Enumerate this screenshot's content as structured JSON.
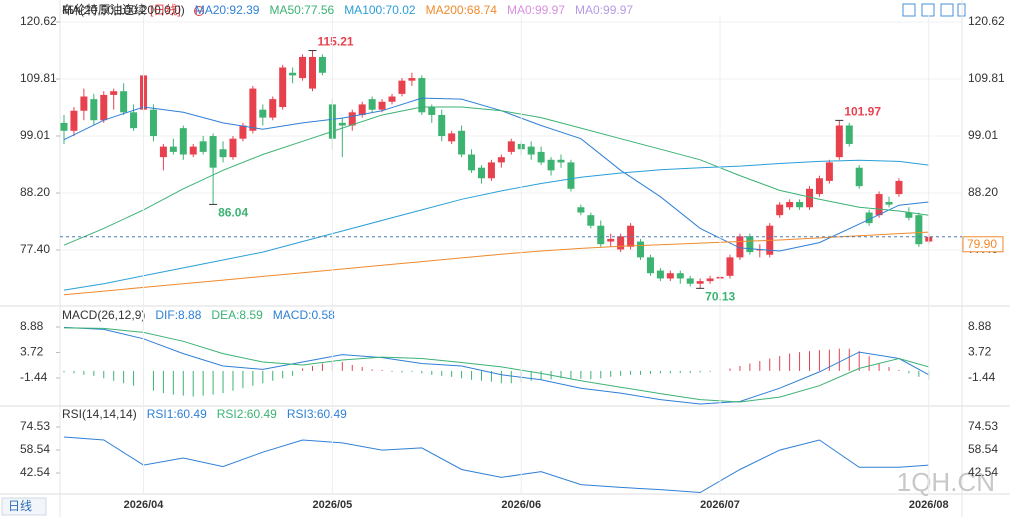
{
  "header": {
    "title": "布伦特原油连续",
    "period": "[日线]",
    "tag": "日线",
    "watermark": "1QH.CN"
  },
  "chart_data": [
    {
      "type": "candlestick",
      "indicator": "MA(20,50,100,200,0,0)",
      "up_color": "#e8414e",
      "down_color": "#3cb371",
      "ylim": [
        66.97,
        121.95
      ],
      "yticks": [
        120.62,
        109.81,
        99.01,
        {
          "value": 88.2,
          "label": "88.20"
        },
        {
          "value": 77.4,
          "label": "77.40"
        }
      ],
      "grid": true,
      "last": {
        "value": 79.9,
        "label": "79.90",
        "color": "#f08a2c"
      },
      "candles": [
        [
          101.5,
          103,
          97.5,
          100
        ],
        [
          100,
          104.5,
          99,
          103.8
        ],
        [
          103.8,
          108,
          102,
          106.5
        ],
        [
          106,
          107,
          101,
          102
        ],
        [
          102,
          107.5,
          101.5,
          106.8
        ],
        [
          106.8,
          108,
          104,
          107.5
        ],
        [
          107.5,
          109,
          103,
          103.5
        ],
        [
          103.5,
          105,
          100,
          100.5
        ],
        [
          104,
          111.5,
          103,
          110.5
        ],
        [
          104,
          105,
          98,
          99
        ],
        [
          95,
          97.5,
          92.5,
          97
        ],
        [
          97,
          98.5,
          95.5,
          96
        ],
        [
          100.5,
          101,
          94.5,
          95.5
        ],
        [
          95.5,
          97.5,
          95,
          97
        ],
        [
          98,
          99,
          95.5,
          96
        ],
        [
          99,
          99.5,
          86.04,
          93
        ],
        [
          96.5,
          98,
          94,
          95
        ],
        [
          95,
          99,
          94.5,
          98.5
        ],
        [
          98.5,
          101.5,
          98,
          101
        ],
        [
          100,
          108.5,
          99.5,
          108
        ],
        [
          104,
          105,
          101,
          102.5
        ],
        [
          102.5,
          106.5,
          102,
          106
        ],
        [
          104.5,
          112.5,
          104,
          112
        ],
        [
          111,
          112,
          109,
          110.5
        ],
        [
          110,
          114.5,
          109.5,
          114
        ],
        [
          108,
          115.21,
          107.5,
          114
        ],
        [
          114,
          114.5,
          110.5,
          111
        ],
        [
          105,
          106,
          96.5,
          98.5
        ],
        [
          101.5,
          102.5,
          95,
          101
        ],
        [
          101,
          104,
          100,
          103.5
        ],
        [
          103,
          105.5,
          102.5,
          105
        ],
        [
          106,
          106.5,
          103.5,
          104
        ],
        [
          104,
          106,
          103.5,
          105.5
        ],
        [
          105.5,
          107,
          105,
          106.5
        ],
        [
          107,
          110,
          106.5,
          109.5
        ],
        [
          109.5,
          111,
          108.5,
          110
        ],
        [
          110,
          110.5,
          103,
          103.5
        ],
        [
          104.5,
          105,
          101.5,
          103
        ],
        [
          103,
          104,
          98,
          99
        ],
        [
          98,
          100,
          97.5,
          99.5
        ],
        [
          100,
          101,
          95,
          95.5
        ],
        [
          95.5,
          96.5,
          92,
          92.5
        ],
        [
          93,
          93.5,
          90,
          91
        ],
        [
          91,
          94.5,
          90.5,
          94
        ],
        [
          94,
          95.5,
          93,
          95
        ],
        [
          96,
          98.5,
          95.5,
          98
        ],
        [
          97.5,
          98,
          95.5,
          96.5
        ],
        [
          97,
          98,
          94.5,
          95.5
        ],
        [
          96,
          97,
          93.5,
          94
        ],
        [
          94.5,
          95,
          91.5,
          92.5
        ],
        [
          94.5,
          95.5,
          93,
          94
        ],
        [
          94,
          94.5,
          88.5,
          89
        ],
        [
          85.5,
          86,
          84,
          84.5
        ],
        [
          84,
          84.5,
          81.5,
          82
        ],
        [
          82,
          83,
          78,
          78.5
        ],
        [
          79,
          80.5,
          78,
          79.5
        ],
        [
          77.5,
          80.5,
          77,
          80
        ],
        [
          78,
          82.5,
          77.5,
          82
        ],
        [
          79,
          79.5,
          75.5,
          76
        ],
        [
          76,
          76.5,
          72.5,
          73
        ],
        [
          73.5,
          74,
          71.5,
          72
        ],
        [
          72,
          73.5,
          71.5,
          73
        ],
        [
          73,
          73.5,
          71,
          72
        ],
        [
          72,
          72.5,
          70.5,
          71
        ],
        [
          71,
          72,
          70.13,
          71.5
        ],
        [
          71.5,
          72.5,
          71,
          72
        ],
        [
          72,
          72.5,
          71.5,
          72.3
        ],
        [
          72.5,
          76.5,
          72,
          76
        ],
        [
          76,
          80.5,
          75.5,
          80
        ],
        [
          80,
          80.5,
          76.5,
          77
        ],
        [
          77.5,
          78.5,
          76,
          77.5
        ],
        [
          76.5,
          82.5,
          76,
          82
        ],
        [
          84,
          86.5,
          83.5,
          86
        ],
        [
          85.5,
          87,
          85,
          86.5
        ],
        [
          86.5,
          87,
          85,
          85.5
        ],
        [
          85.5,
          89.5,
          85,
          89
        ],
        [
          88,
          91.5,
          87.5,
          91
        ],
        [
          90.5,
          94.5,
          90,
          94
        ],
        [
          95,
          101.97,
          94.5,
          101
        ],
        [
          101,
          101.5,
          97,
          97.5
        ],
        [
          93,
          93.5,
          89,
          89.5
        ],
        [
          84.5,
          85,
          82,
          82.5
        ],
        [
          84,
          88.5,
          83.5,
          88
        ],
        [
          86.5,
          87.5,
          85.5,
          86
        ],
        [
          88,
          91,
          87.5,
          90.5
        ],
        [
          84.5,
          85.5,
          83,
          83.5
        ],
        [
          84,
          84.5,
          78,
          78.5
        ],
        [
          79,
          80.5,
          78.5,
          79.9
        ]
      ],
      "annotations": [
        {
          "index": 25,
          "value": 115.21
        },
        {
          "index": 15,
          "value": 86.04
        },
        {
          "index": 78,
          "value": 101.97
        },
        {
          "index": 64,
          "value": 70.13
        }
      ],
      "series": [
        {
          "name": "MA20:92.39",
          "color": "#2f7fd6",
          "x": [
            0,
            4,
            8,
            12,
            16,
            20,
            24,
            28,
            32,
            36,
            40,
            44,
            48,
            52,
            56,
            60,
            64,
            68,
            72,
            76,
            80,
            84,
            87
          ],
          "values": [
            98.3,
            102,
            104.5,
            103.5,
            101.5,
            100.3,
            101.5,
            102.4,
            103.8,
            106.2,
            106,
            103.8,
            101,
            98.5,
            92.5,
            87.5,
            81.5,
            77.8,
            77.2,
            78.8,
            82.3,
            85.9,
            86.5
          ]
        },
        {
          "name": "MA50:77.56",
          "color": "#3bb273",
          "x": [
            0,
            4,
            8,
            12,
            16,
            20,
            24,
            28,
            32,
            36,
            40,
            44,
            48,
            52,
            56,
            60,
            64,
            68,
            72,
            76,
            80,
            84,
            87
          ],
          "values": [
            78.3,
            81.5,
            85,
            89,
            92.5,
            95.5,
            98,
            100.5,
            103,
            104.5,
            104.5,
            103.8,
            102.5,
            100.5,
            98.5,
            96.5,
            94.5,
            91.5,
            88.7,
            87,
            85.5,
            84.8,
            84
          ]
        },
        {
          "name": "MA100:70.02",
          "color": "#2a9fd8",
          "x": [
            0,
            4,
            8,
            12,
            16,
            20,
            24,
            28,
            32,
            36,
            40,
            44,
            48,
            52,
            56,
            60,
            64,
            68,
            72,
            76,
            80,
            84,
            87
          ],
          "values": [
            69.8,
            71,
            72.5,
            74,
            75.5,
            77,
            79,
            81,
            83,
            85,
            87,
            88.6,
            90,
            91.2,
            92,
            92.6,
            93,
            93.3,
            93.8,
            94.2,
            94.4,
            94.2,
            93.5
          ]
        },
        {
          "name": "MA200:68.74",
          "color": "#f08a2c",
          "x": [
            0,
            4,
            8,
            12,
            16,
            20,
            24,
            28,
            32,
            36,
            40,
            44,
            48,
            52,
            56,
            60,
            64,
            68,
            72,
            76,
            80,
            84,
            87
          ],
          "values": [
            68.9,
            69.6,
            70.3,
            71,
            71.7,
            72.4,
            73.1,
            73.8,
            74.5,
            75.2,
            75.9,
            76.6,
            77.2,
            77.7,
            78.1,
            78.4,
            78.7,
            79,
            79.3,
            79.7,
            80.1,
            80.5,
            80.8
          ]
        }
      ],
      "extra_legend": [
        {
          "label": "MA0:99.97",
          "color": "#d98ee0"
        },
        {
          "label": "MA0:99.97",
          "color": "#b49ae6"
        }
      ]
    },
    {
      "type": "macd",
      "indicator": "MACD(26,12,9)",
      "ylim": [
        -7.51,
        12.73
      ],
      "yticks": [
        8.88,
        3.72,
        -1.44
      ],
      "histogram": {
        "name": "MACD:0.58",
        "color": "#2f7fd6",
        "up_color": "#e8414e",
        "down_color": "#3cb371",
        "values": [
          -0.3,
          -0.5,
          -0.8,
          -1.0,
          -1.5,
          -2.0,
          -2.5,
          -3,
          -3.5,
          -4,
          -4.5,
          -4.8,
          -5,
          -5.2,
          -5,
          -4.8,
          -4.5,
          -4,
          -3.5,
          -3,
          -2.5,
          -2,
          -1.5,
          -1,
          0.5,
          1,
          1.5,
          2,
          1.8,
          1.2,
          0.8,
          0.3,
          0.2,
          -0.2,
          -0.3,
          -0.2,
          -0.5,
          -0.8,
          -1,
          -1.2,
          -1.5,
          -1.8,
          -2,
          -2.2,
          -2.5,
          -2.5,
          -2.3,
          -2,
          -1.8,
          -1.7,
          -1.5,
          -1.5,
          -1.6,
          -1.7,
          -1.5,
          -1.2,
          -1,
          -0.8,
          -0.8,
          -0.6,
          -0.5,
          -0.5,
          -0.4,
          -0.4,
          -0.3,
          -0.2,
          -0.1,
          0.5,
          1,
          1.5,
          2,
          2.5,
          3,
          3.5,
          3.8,
          4,
          4.2,
          4.3,
          4.5,
          4.5,
          4,
          3,
          1.5,
          0.8,
          0.2,
          -0.5,
          -1.2,
          -1.8
        ]
      },
      "series": [
        {
          "name": "DIF:8.88",
          "color": "#2f7fd6",
          "x": [
            0,
            4,
            8,
            12,
            16,
            20,
            24,
            28,
            32,
            36,
            40,
            44,
            48,
            52,
            56,
            60,
            64,
            68,
            72,
            76,
            80,
            84,
            87
          ],
          "values": [
            8.8,
            8.4,
            6.5,
            3.5,
            1,
            0.3,
            1.8,
            3.3,
            2.7,
            1.5,
            1,
            -0.8,
            -1.8,
            -3.5,
            -4.5,
            -5.8,
            -6.7,
            -6.2,
            -3.5,
            -0.2,
            3.8,
            2.5,
            -0.8
          ]
        },
        {
          "name": "DEA:8.59",
          "color": "#3bb273",
          "x": [
            0,
            4,
            8,
            12,
            16,
            20,
            24,
            28,
            32,
            36,
            40,
            44,
            48,
            52,
            56,
            60,
            64,
            68,
            72,
            76,
            80,
            84,
            87
          ],
          "values": [
            8.7,
            8.6,
            7.8,
            6,
            3.5,
            1.8,
            1.2,
            2.2,
            2.8,
            2.5,
            1.7,
            0.8,
            -0.5,
            -2,
            -3.3,
            -4.6,
            -5.8,
            -6.3,
            -5.3,
            -3,
            0.5,
            2.5,
            0.8
          ]
        }
      ]
    },
    {
      "type": "line",
      "indicator": "RSI(14,14,14)",
      "ylim": [
        29.32,
        87.75
      ],
      "yticks": [
        74.53,
        58.54,
        42.54
      ],
      "xticks": [
        {
          "value": 8,
          "label": "2026/04"
        },
        {
          "value": 27,
          "label": "2026/05"
        },
        {
          "value": 46,
          "label": "2026/06"
        },
        {
          "value": 66,
          "label": "2026/07"
        },
        {
          "value": 87,
          "label": "2026/08"
        }
      ],
      "series": [
        {
          "name": "RSI1:60.49",
          "color": "#2f7fd6",
          "x": [
            0,
            4,
            8,
            12,
            16,
            20,
            24,
            28,
            32,
            36,
            40,
            44,
            48,
            52,
            56,
            60,
            64,
            68,
            72,
            76,
            80,
            84,
            87
          ],
          "values": [
            67.6,
            65.5,
            48,
            53,
            47,
            57,
            65.5,
            63.5,
            58.5,
            60,
            45,
            39.5,
            43.5,
            34.5,
            32.5,
            31,
            29,
            45,
            58.5,
            65.5,
            46.5,
            46.5,
            48
          ]
        }
      ],
      "extra_legend": [
        {
          "label": "RSI2:60.49",
          "color": "#3bb273"
        },
        {
          "label": "RSI3:60.49",
          "color": "#2f7fd6"
        }
      ]
    }
  ]
}
